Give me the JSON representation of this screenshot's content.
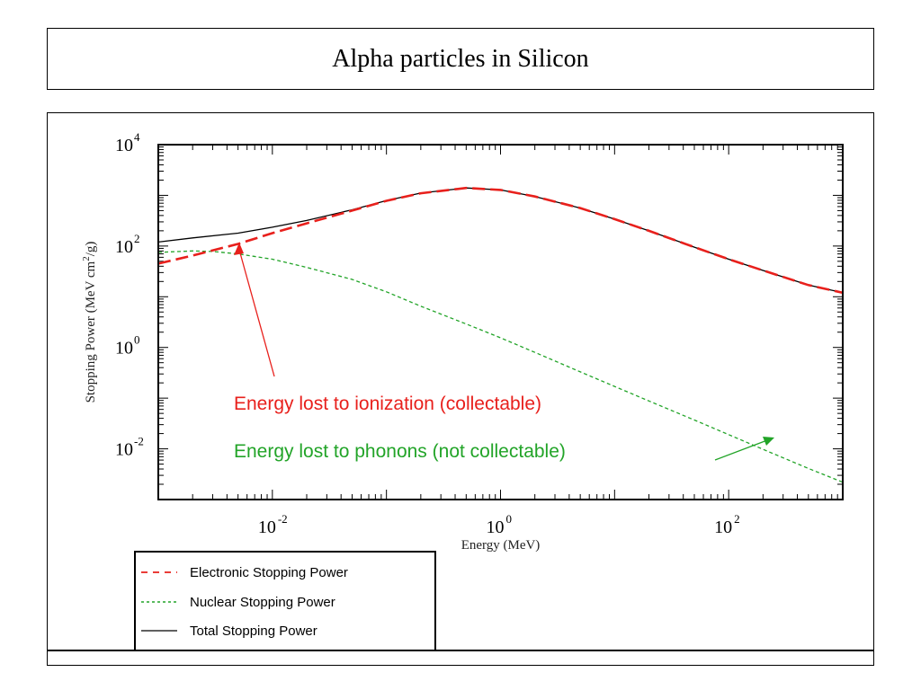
{
  "page": {
    "title": "Alpha particles in Silicon"
  },
  "chart_data": {
    "type": "line",
    "xlabel": "Energy (MeV)",
    "ylabel": "Stopping Power (MeV cm",
    "ylabel_sup": "2",
    "ylabel_tail": "/g)",
    "x_scale": "log",
    "y_scale": "log",
    "xlim": [
      0.001,
      1000
    ],
    "ylim": [
      0.001,
      10000
    ],
    "x_ticks": [
      {
        "base": "10",
        "exp": "-2",
        "value": 0.01
      },
      {
        "base": "10",
        "exp": "0",
        "value": 1
      },
      {
        "base": "10",
        "exp": "2",
        "value": 100
      }
    ],
    "y_ticks": [
      {
        "base": "10",
        "exp": "4",
        "value": 10000
      },
      {
        "base": "10",
        "exp": "2",
        "value": 100
      },
      {
        "base": "10",
        "exp": "0",
        "value": 1
      },
      {
        "base": "10",
        "exp": "-2",
        "value": 0.01
      }
    ],
    "grid": false,
    "legend_position": "below-left",
    "series": [
      {
        "name": "Electronic Stopping Power",
        "color": "#e8201c",
        "dash": "dashed",
        "x": [
          0.001,
          0.002,
          0.005,
          0.01,
          0.02,
          0.05,
          0.1,
          0.2,
          0.5,
          1,
          2,
          5,
          10,
          20,
          50,
          100,
          200,
          500,
          1000
        ],
        "y": [
          45,
          65,
          110,
          180,
          280,
          500,
          780,
          1100,
          1400,
          1280,
          950,
          560,
          340,
          200,
          95,
          55,
          33,
          17,
          12
        ]
      },
      {
        "name": "Nuclear Stopping Power",
        "color": "#22a428",
        "dash": "dotted",
        "x": [
          0.001,
          0.002,
          0.003,
          0.005,
          0.01,
          0.02,
          0.05,
          0.1,
          0.2,
          0.5,
          1,
          2,
          5,
          10,
          20,
          50,
          100,
          200,
          500,
          1000
        ],
        "y": [
          75,
          80,
          78,
          70,
          55,
          38,
          22,
          12.5,
          6.5,
          2.9,
          1.55,
          0.8,
          0.33,
          0.17,
          0.088,
          0.037,
          0.019,
          0.0098,
          0.0041,
          0.0022
        ]
      },
      {
        "name": "Total Stopping Power",
        "color": "#000000",
        "dash": "solid",
        "x": [
          0.001,
          0.002,
          0.005,
          0.01,
          0.02,
          0.05,
          0.1,
          0.2,
          0.5,
          1,
          2,
          5,
          10,
          20,
          50,
          100,
          200,
          500,
          1000
        ],
        "y": [
          120,
          145,
          180,
          235,
          320,
          520,
          790,
          1110,
          1400,
          1280,
          950,
          560,
          340,
          200,
          95,
          55,
          33,
          17,
          12
        ]
      }
    ],
    "annotations": [
      {
        "text": "Energy lost to ionization  (collectable)",
        "color": "#e8201c"
      },
      {
        "text": "Energy lost to phonons (not collectable)",
        "color": "#22a428"
      }
    ]
  }
}
